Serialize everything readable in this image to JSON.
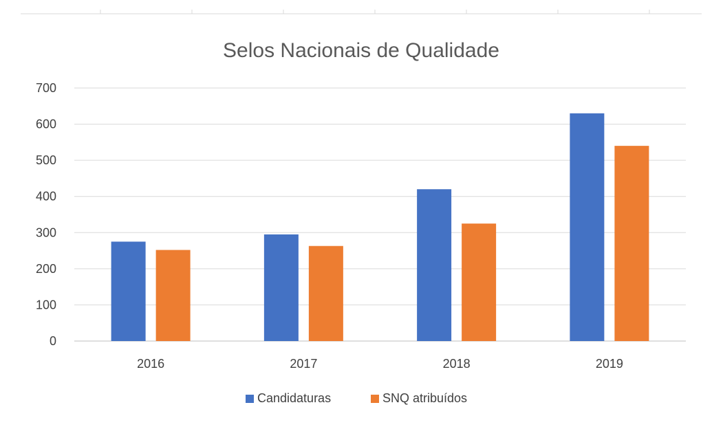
{
  "chart_data": {
    "type": "bar",
    "title": "Selos Nacionais de Qualidade",
    "xlabel": "",
    "ylabel": "",
    "categories": [
      "2016",
      "2017",
      "2018",
      "2019"
    ],
    "ylim": [
      0,
      700
    ],
    "yticks": [
      0,
      100,
      200,
      300,
      400,
      500,
      600,
      700
    ],
    "grid": true,
    "legend_position": "bottom",
    "series": [
      {
        "name": "Candidaturas",
        "values": [
          275,
          295,
          420,
          630
        ],
        "color": "#4472C4"
      },
      {
        "name": "SNQ atribuídos",
        "values": [
          252,
          263,
          325,
          540
        ],
        "color": "#ED7D31"
      }
    ]
  }
}
